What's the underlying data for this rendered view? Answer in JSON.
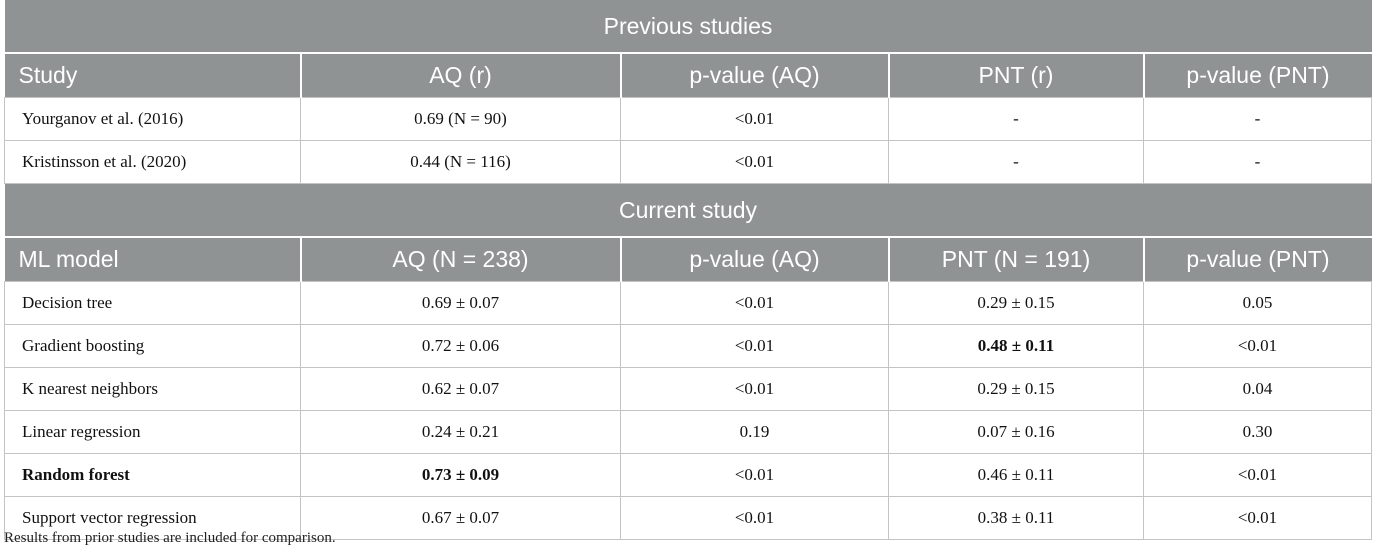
{
  "previous": {
    "section_title": "Previous studies",
    "headers": [
      "Study",
      "AQ (r)",
      "p-value (AQ)",
      "PNT (r)",
      "p-value (PNT)"
    ],
    "rows": [
      {
        "study": "Yourganov et al. (2016)",
        "aq": "0.69 (N = 90)",
        "p_aq": "<0.01",
        "pnt": "-",
        "p_pnt": "-"
      },
      {
        "study": "Kristinsson et al. (2020)",
        "aq": "0.44 (N = 116)",
        "p_aq": "<0.01",
        "pnt": "-",
        "p_pnt": "-"
      }
    ]
  },
  "current": {
    "section_title": "Current study",
    "headers": [
      "ML model",
      "AQ (N = 238)",
      "p-value (AQ)",
      "PNT (N = 191)",
      "p-value (PNT)"
    ],
    "rows": [
      {
        "model": "Decision tree",
        "aq": "0.69 ± 0.07",
        "p_aq": "<0.01",
        "pnt": "0.29 ± 0.15",
        "p_pnt": "0.05"
      },
      {
        "model": "Gradient boosting",
        "aq": "0.72 ± 0.06",
        "p_aq": "<0.01",
        "pnt": "0.48 ± 0.11",
        "p_pnt": "<0.01"
      },
      {
        "model": "K nearest neighbors",
        "aq": "0.62 ± 0.07",
        "p_aq": "<0.01",
        "pnt": "0.29 ± 0.15",
        "p_pnt": "0.04"
      },
      {
        "model": "Linear regression",
        "aq": "0.24 ± 0.21",
        "p_aq": "0.19",
        "pnt": "0.07 ± 0.16",
        "p_pnt": "0.30"
      },
      {
        "model": "Random forest",
        "aq": "0.73 ± 0.09",
        "p_aq": "<0.01",
        "pnt": "0.46 ± 0.11",
        "p_pnt": "<0.01"
      },
      {
        "model": "Support vector regression",
        "aq": "0.67 ± 0.07",
        "p_aq": "<0.01",
        "pnt": "0.38 ± 0.11",
        "p_pnt": "<0.01"
      }
    ]
  },
  "footnote": "Results from prior studies are included for comparison."
}
